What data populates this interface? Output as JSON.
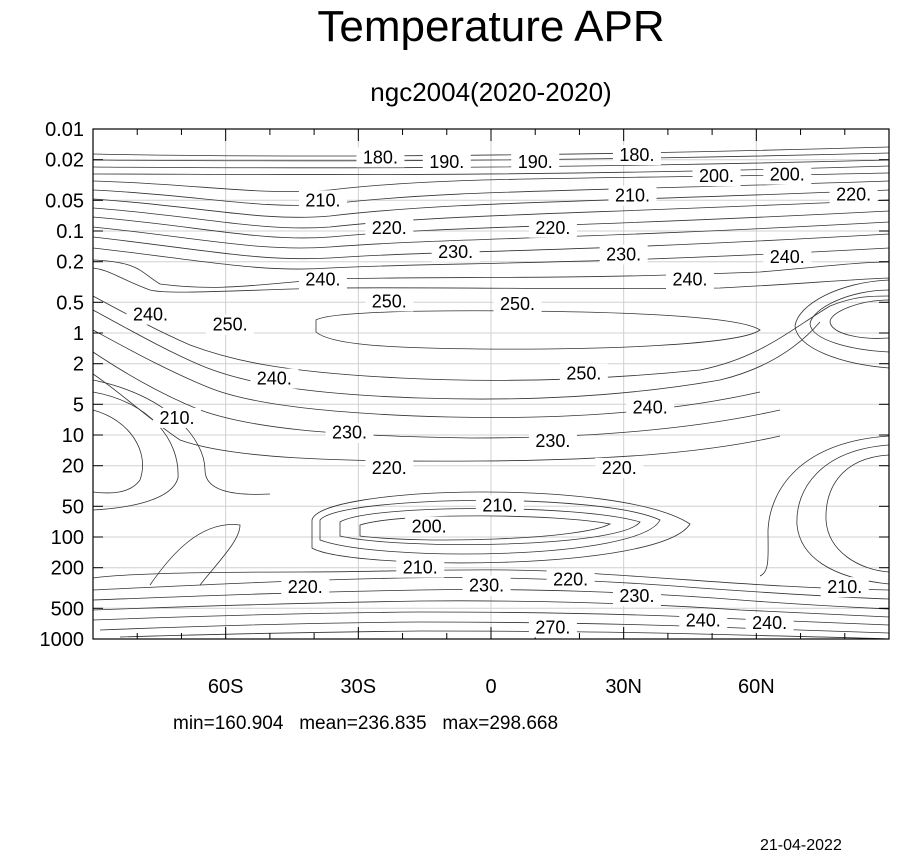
{
  "header": {
    "title": "Temperature APR",
    "subtitle": "ngc2004(2020-2020)"
  },
  "footer": {
    "stats": "min=160.904   mean=236.835   max=298.668",
    "date": "21-04-2022"
  },
  "chart_data": {
    "type": "contour",
    "title": "Temperature APR",
    "subtitle": "ngc2004(2020-2020)",
    "x_axis": {
      "range": [
        -90,
        90
      ],
      "ticks": [
        -60,
        -30,
        0,
        30,
        60
      ],
      "tick_labels": [
        "60S",
        "30S",
        "0",
        "30N",
        "60N"
      ]
    },
    "y_axis": {
      "scale": "log",
      "inverted": true,
      "range": [
        0.01,
        1000
      ],
      "ticks": [
        0.01,
        0.02,
        0.05,
        0.1,
        0.2,
        0.5,
        1,
        2,
        5,
        10,
        20,
        50,
        100,
        200,
        500,
        1000
      ],
      "tick_labels": [
        "0.01",
        "0.02",
        "0.05",
        "0.1",
        "0.2",
        "0.5",
        "1",
        "2",
        "5",
        "10",
        "20",
        "50",
        "100",
        "200",
        "500",
        "1000"
      ]
    },
    "grid": true,
    "contour_interval": 10,
    "contour_labels": [
      {
        "text": "180.",
        "lat": -25,
        "p": 0.019
      },
      {
        "text": "190.",
        "lat": -10,
        "p": 0.021
      },
      {
        "text": "190.",
        "lat": 10,
        "p": 0.021
      },
      {
        "text": "180.",
        "lat": 33,
        "p": 0.018
      },
      {
        "text": "200.",
        "lat": 51,
        "p": 0.029
      },
      {
        "text": "200.",
        "lat": 67,
        "p": 0.028
      },
      {
        "text": "210.",
        "lat": -38,
        "p": 0.05
      },
      {
        "text": "210.",
        "lat": 32,
        "p": 0.045
      },
      {
        "text": "220.",
        "lat": 82,
        "p": 0.044
      },
      {
        "text": "220.",
        "lat": -23,
        "p": 0.093
      },
      {
        "text": "220.",
        "lat": 14,
        "p": 0.093
      },
      {
        "text": "230.",
        "lat": -8,
        "p": 0.16
      },
      {
        "text": "230.",
        "lat": 30,
        "p": 0.17
      },
      {
        "text": "240.",
        "lat": -38,
        "p": 0.3
      },
      {
        "text": "240.",
        "lat": 45,
        "p": 0.3
      },
      {
        "text": "240.",
        "lat": 67,
        "p": 0.18
      },
      {
        "text": "250.",
        "lat": -23,
        "p": 0.49
      },
      {
        "text": "250.",
        "lat": 6,
        "p": 0.52
      },
      {
        "text": "240.",
        "lat": -77,
        "p": 0.66
      },
      {
        "text": "250.",
        "lat": -59,
        "p": 0.83
      },
      {
        "text": "240.",
        "lat": -49,
        "p": 2.8
      },
      {
        "text": "250.",
        "lat": 21,
        "p": 2.5
      },
      {
        "text": "210.",
        "lat": -71,
        "p": 6.8
      },
      {
        "text": "240.",
        "lat": 36,
        "p": 5.4
      },
      {
        "text": "230.",
        "lat": -32,
        "p": 9.5
      },
      {
        "text": "230.",
        "lat": 14,
        "p": 11.5
      },
      {
        "text": "220.",
        "lat": -23,
        "p": 21
      },
      {
        "text": "220.",
        "lat": 29,
        "p": 21
      },
      {
        "text": "210.",
        "lat": 2,
        "p": 49
      },
      {
        "text": "200.",
        "lat": -14,
        "p": 79
      },
      {
        "text": "210.",
        "lat": -16,
        "p": 200
      },
      {
        "text": "230.",
        "lat": -1,
        "p": 300
      },
      {
        "text": "220.",
        "lat": 18,
        "p": 260
      },
      {
        "text": "220.",
        "lat": -42,
        "p": 310
      },
      {
        "text": "230.",
        "lat": 33,
        "p": 380
      },
      {
        "text": "240.",
        "lat": 48,
        "p": 660
      },
      {
        "text": "240.",
        "lat": 63,
        "p": 700
      },
      {
        "text": "210.",
        "lat": 80,
        "p": 310
      },
      {
        "text": "270.",
        "lat": 14,
        "p": 770
      }
    ]
  }
}
